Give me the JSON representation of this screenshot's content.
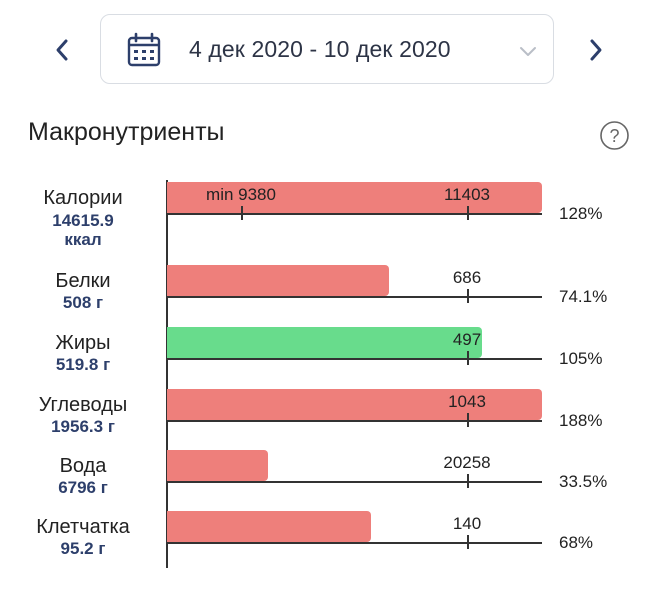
{
  "header": {
    "date_range": "4 дек 2020 - 10 дек 2020",
    "prev_icon": "chevron-left-icon",
    "next_icon": "chevron-right-icon",
    "calendar_icon": "calendar-icon",
    "dropdown_icon": "chevron-down-icon"
  },
  "section": {
    "title": "Макронутриенты",
    "help_icon": "question-circle-icon"
  },
  "colors": {
    "over": "#ee7f7b",
    "ok": "#68dc8c",
    "accent": "#2d3f6b"
  },
  "nutrients": [
    {
      "label": "Калории",
      "amount": "14615.9",
      "unit": "ккал",
      "target": "11403",
      "min": "min 9380",
      "percent": "128%",
      "fill": 1.0,
      "status": "over"
    },
    {
      "label": "Белки",
      "amount": "508 г",
      "target": "686",
      "percent": "74.1%",
      "fill": 0.741,
      "status": "over"
    },
    {
      "label": "Жиры",
      "amount": "519.8 г",
      "target": "497",
      "percent": "105%",
      "fill": 1.05,
      "status": "ok"
    },
    {
      "label": "Углеводы",
      "amount": "1956.3 г",
      "target": "1043",
      "percent": "188%",
      "fill": 1.0,
      "status": "over"
    },
    {
      "label": "Вода",
      "amount": "6796 г",
      "target": "20258",
      "percent": "33.5%",
      "fill": 0.335,
      "status": "over"
    },
    {
      "label": "Клетчатка",
      "amount": "95.2 г",
      "target": "140",
      "percent": "68%",
      "fill": 0.68,
      "status": "over"
    }
  ]
}
